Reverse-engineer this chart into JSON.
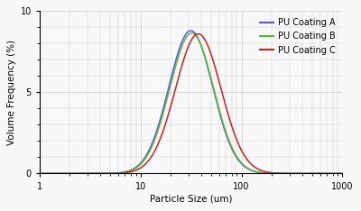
{
  "title": "",
  "xlabel": "Particle Size (um)",
  "ylabel": "Volume Frequency (%)",
  "xlim": [
    1,
    1000
  ],
  "ylim": [
    0,
    10
  ],
  "yticks": [
    0,
    5,
    10
  ],
  "background_color": "#f8f8f8",
  "grid_color": "#cccccc",
  "legend": [
    "PU Coating A",
    "PU Coating B",
    "PU Coating C"
  ],
  "line_colors": [
    "#5555dd",
    "#55bb33",
    "#cc2222"
  ],
  "curves": {
    "A": {
      "mu_log": 3.45,
      "sigma_log": 0.5,
      "peak": 8.8
    },
    "B": {
      "mu_log": 3.47,
      "sigma_log": 0.5,
      "peak": 8.65
    },
    "C": {
      "mu_log": 3.62,
      "sigma_log": 0.52,
      "peak": 8.6
    }
  }
}
